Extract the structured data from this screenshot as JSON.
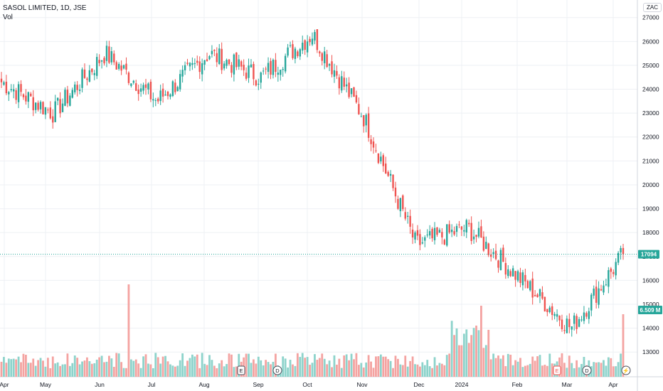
{
  "header": {
    "title": "SASOL LIMITED, 1D, JSE",
    "volume_label": "Vol"
  },
  "currency": "ZAC",
  "colors": {
    "up": "#26a69a",
    "down": "#ef5350",
    "vol_up": "#8dd3cb",
    "vol_down": "#f4a3a1",
    "last_price_line": "#26a69a",
    "grid": "#eef0f4"
  },
  "chart_data": {
    "type": "candlestick",
    "symbol": "SASOL LIMITED",
    "interval": "1D",
    "exchange": "JSE",
    "x_ticks": [
      "Apr",
      "May",
      "Jun",
      "Jul",
      "Aug",
      "Sep",
      "Oct",
      "Nov",
      "Dec",
      "2024",
      "Feb",
      "Mar",
      "Apr"
    ],
    "y_ticks": [
      13000,
      14000,
      15000,
      16000,
      17000,
      18000,
      19000,
      20000,
      21000,
      22000,
      23000,
      24000,
      25000,
      26000,
      27000
    ],
    "ylim": [
      12500,
      27200
    ],
    "last_price": 17094,
    "last_price_label": "17094",
    "last_volume_label": "6.509 M",
    "events": [
      {
        "label": "E",
        "near": "Sep",
        "style": "earnings"
      },
      {
        "label": "D",
        "near": "Sep",
        "style": "dividend"
      },
      {
        "label": "E",
        "near": "Feb–Mar",
        "style": "earnings-red"
      },
      {
        "label": "D",
        "near": "Mar",
        "style": "dividend"
      },
      {
        "label": "⚡",
        "near": "Apr",
        "style": "split"
      }
    ],
    "price_path_monthly": [
      {
        "month": "Apr",
        "close": 24300
      },
      {
        "month": "May",
        "close": 23000
      },
      {
        "month": "Jun",
        "close": 25500
      },
      {
        "month": "Jul",
        "close": 23500
      },
      {
        "month": "Aug",
        "close": 25500
      },
      {
        "month": "Sep",
        "close": 24500
      },
      {
        "month": "Oct",
        "close": 26300
      },
      {
        "month": "Nov",
        "close": 22800
      },
      {
        "month": "Dec",
        "close": 17500
      },
      {
        "month": "2024",
        "close": 18200
      },
      {
        "month": "Feb",
        "close": 16100
      },
      {
        "month": "Mar",
        "close": 14000
      },
      {
        "month": "Apr",
        "close": 17094
      }
    ],
    "grid": true
  }
}
